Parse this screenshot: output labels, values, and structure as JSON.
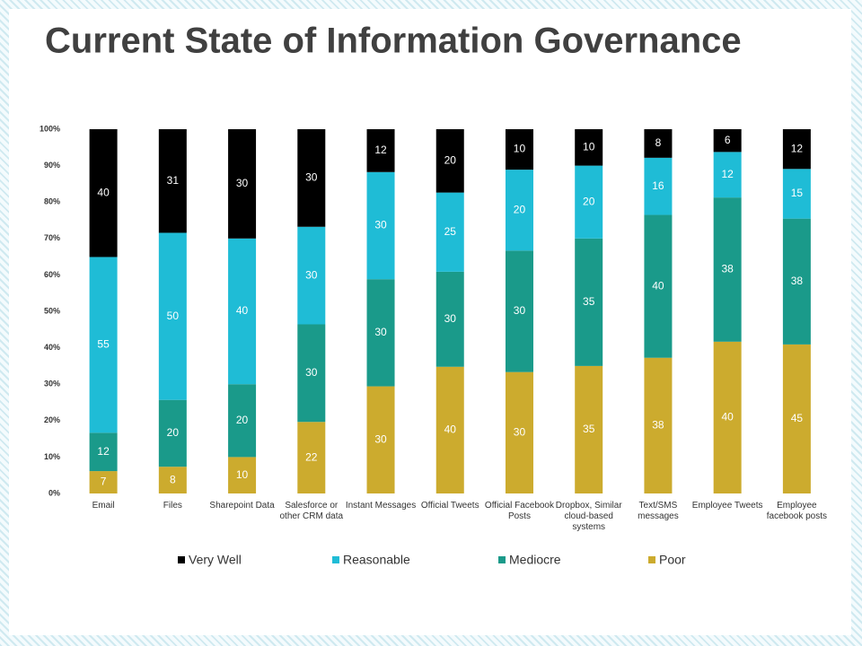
{
  "chart_data": {
    "type": "bar",
    "stack": "percent",
    "title": "Current State of Information Governance",
    "categories": [
      "Email",
      "Files",
      "Sharepoint Data",
      "Salesforce or other CRM data",
      "Instant Messages",
      "Official Tweets",
      "Official Facebook Posts",
      "Dropbox, Similar cloud-based systems",
      "Text/SMS messages",
      "Employee Tweets",
      "Employee facebook posts"
    ],
    "series": [
      {
        "name": "Very Well",
        "color": "#000000",
        "values": [
          40,
          31,
          30,
          30,
          12,
          20,
          10,
          10,
          8,
          6,
          12
        ]
      },
      {
        "name": "Reasonable",
        "color": "#1fbcd6",
        "values": [
          55,
          50,
          40,
          30,
          30,
          25,
          20,
          20,
          16,
          12,
          15
        ]
      },
      {
        "name": "Mediocre",
        "color": "#1a9a8a",
        "values": [
          12,
          20,
          20,
          30,
          30,
          30,
          30,
          35,
          40,
          38,
          38
        ]
      },
      {
        "name": "Poor",
        "color": "#ccab2e",
        "values": [
          7,
          8,
          10,
          22,
          30,
          40,
          30,
          35,
          38,
          40,
          45
        ]
      }
    ],
    "ylim": [
      0,
      100
    ],
    "yticks": [
      {
        "value": 0,
        "label": "0%"
      },
      {
        "value": 10,
        "label": "10%"
      },
      {
        "value": 20,
        "label": "20%"
      },
      {
        "value": 30,
        "label": "30%"
      },
      {
        "value": 40,
        "label": "40%"
      },
      {
        "value": 50,
        "label": "50%"
      },
      {
        "value": 60,
        "label": "60%"
      },
      {
        "value": 70,
        "label": "70%"
      },
      {
        "value": 80,
        "label": "80%"
      },
      {
        "value": 90,
        "label": "90%"
      },
      {
        "value": 100,
        "label": "100%"
      }
    ],
    "legend": "bottom"
  }
}
